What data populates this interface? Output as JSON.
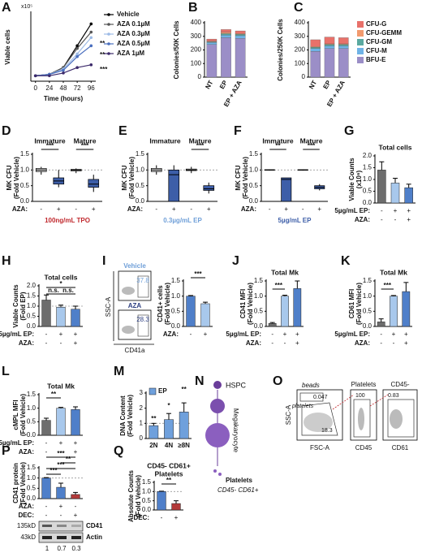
{
  "chart_data": [
    {
      "type": "line",
      "panel": "A",
      "y_unit": "x10⁵",
      "ylabel": [
        "Viable cells"
      ],
      "xlabel": "Time (hours)",
      "x": [
        0,
        24,
        48,
        72,
        96
      ],
      "xlim": [
        -8,
        104
      ],
      "xticks": [
        0,
        24,
        48,
        72,
        96
      ],
      "ylim": [
        0,
        2.5
      ],
      "series": [
        {
          "name": "Vehicle",
          "color": "#000000",
          "values": [
            0.2,
            0.25,
            0.5,
            1.3,
            2.1
          ]
        },
        {
          "name": "AZA 0.1µM",
          "color": "#555555",
          "values": [
            0.2,
            0.25,
            0.5,
            1.2,
            1.8
          ]
        },
        {
          "name": "AZA 0.3µM",
          "color": "#9dbbe6",
          "values": [
            0.2,
            0.25,
            0.45,
            1.0,
            1.6
          ]
        },
        {
          "name": "AZA 0.5µM",
          "color": "#4a6fbf",
          "values": [
            0.2,
            0.25,
            0.4,
            0.9,
            1.3
          ]
        },
        {
          "name": "AZA 1µM",
          "color": "#3c2a6b",
          "values": [
            0.2,
            0.2,
            0.3,
            0.5,
            0.6
          ]
        }
      ],
      "annotations": [
        "**",
        "**",
        "***"
      ]
    },
    {
      "type": "stacked_bar",
      "panel": "B",
      "ylabel": [
        "Colonies/50K Cells"
      ],
      "categories": [
        "NT",
        "EP",
        "EP + AZA"
      ],
      "ylim": [
        0,
        400
      ],
      "yticks": [
        0,
        100,
        200,
        300,
        400
      ],
      "series": [
        {
          "color": "#9b8ec7",
          "values": [
            240,
            290,
            285
          ]
        },
        {
          "color": "#6fb3e6",
          "values": [
            15,
            20,
            20
          ]
        },
        {
          "color": "#5aa9a0",
          "values": [
            5,
            10,
            10
          ]
        },
        {
          "color": "#f29a6e",
          "values": [
            5,
            10,
            5
          ]
        },
        {
          "color": "#e8716a",
          "values": [
            15,
            20,
            20
          ]
        }
      ]
    },
    {
      "type": "stacked_bar",
      "panel": "C",
      "ylabel": [
        "Colonies/250K Cells"
      ],
      "categories": [
        "NT",
        "EP",
        "EP + AZA"
      ],
      "ylim": [
        0,
        400
      ],
      "yticks": [
        0,
        100,
        200,
        300,
        400
      ],
      "series": [
        {
          "name": "BFU-E",
          "color": "#9b8ec7",
          "values": [
            190,
            210,
            210
          ]
        },
        {
          "name": "CFU-M",
          "color": "#6fb3e6",
          "values": [
            20,
            20,
            20
          ]
        },
        {
          "name": "CFU-GM",
          "color": "#5aa9a0",
          "values": [
            10,
            10,
            10
          ]
        },
        {
          "name": "CFU-GEMM",
          "color": "#f29a6e",
          "values": [
            5,
            5,
            5
          ]
        },
        {
          "name": "CFU-G",
          "color": "#e8716a",
          "values": [
            50,
            50,
            45
          ]
        }
      ]
    },
    {
      "type": "box",
      "panel": "D",
      "groups": [
        "Immature",
        "Mature"
      ],
      "ylabel": [
        "MK CFU",
        "(Fold Vehicle)"
      ],
      "ylim": [
        0,
        1.5
      ],
      "yticks": [
        {
          "value": 0,
          "label": "0.0"
        },
        {
          "value": 0.5,
          "label": "0.5"
        },
        {
          "value": 1,
          "label": "1.0"
        },
        {
          "value": 1.5,
          "label": "1.5"
        }
      ],
      "refline": 1,
      "series": [
        {
          "color": "#dddddd",
          "values": [
            [
              0.85,
              0.95,
              1.0,
              1.05,
              1.1
            ],
            [
              0.9,
              0.97,
              1.0,
              1.02,
              1.05
            ]
          ]
        },
        {
          "color": "#3d5ea8",
          "values": [
            [
              0.45,
              0.55,
              0.65,
              0.75,
              1.0
            ],
            [
              0.3,
              0.45,
              0.55,
              0.7,
              0.85
            ]
          ]
        }
      ],
      "rows": [
        {
          "label": "AZA:",
          "signs": [
            "-",
            "+",
            "-",
            "+"
          ]
        }
      ],
      "condition": "100ng/mL TPO",
      "condition_color": "#c0282d",
      "annotations": [
        "***",
        "***"
      ]
    },
    {
      "type": "box",
      "panel": "E",
      "groups": [
        "Immature",
        "Mature"
      ],
      "ylabel": [
        "MK CFU",
        "(Fold Vehicle)"
      ],
      "ylim": [
        0,
        1.5
      ],
      "yticks": [
        {
          "value": 0,
          "label": "0.0"
        },
        {
          "value": 0.5,
          "label": "0.5"
        },
        {
          "value": 1,
          "label": "1.0"
        },
        {
          "value": 1.5,
          "label": "1.5"
        }
      ],
      "refline": 1,
      "series": [
        {
          "color": "#dddddd",
          "values": [
            [
              0.85,
              0.95,
              1.0,
              1.05,
              1.15
            ],
            [
              0.9,
              0.98,
              1.0,
              1.03,
              1.1
            ]
          ]
        },
        {
          "color": "#3d5ea8",
          "values": [
            [
              0.0,
              0.0,
              0.85,
              1.0,
              1.15
            ],
            [
              0.25,
              0.35,
              0.4,
              0.5,
              0.6
            ]
          ]
        }
      ],
      "rows": [
        {
          "label": "AZA:",
          "signs": [
            "-",
            "+",
            "-",
            "+"
          ]
        }
      ],
      "condition": "0.3µg/mL EP",
      "condition_color": "#6f9fd8",
      "annotations": [
        "***"
      ]
    },
    {
      "type": "box",
      "panel": "F",
      "groups": [
        "Immature",
        "Mature"
      ],
      "ylabel": [
        "MK CFU",
        "(Fold Vehicle)"
      ],
      "ylim": [
        0,
        1.5
      ],
      "yticks": [
        {
          "value": 0,
          "label": "0.0"
        },
        {
          "value": 0.5,
          "label": "0.5"
        },
        {
          "value": 1,
          "label": "1.0"
        },
        {
          "value": 1.5,
          "label": "1.5"
        }
      ],
      "refline": 1,
      "series": [
        {
          "color": "#dddddd",
          "values": [
            [
              0.98,
              0.99,
              1.0,
              1.01,
              1.02
            ],
            [
              0.98,
              0.99,
              1.0,
              1.01,
              1.02
            ]
          ]
        },
        {
          "color": "#3d5ea8",
          "values": [
            [
              0.0,
              0.0,
              0.7,
              0.75,
              0.75
            ],
            [
              0.35,
              0.4,
              0.45,
              0.5,
              0.55
            ]
          ]
        }
      ],
      "rows": [
        {
          "label": "AZA:",
          "signs": [
            "-",
            "+",
            "-",
            "+"
          ]
        }
      ],
      "condition": "5µg/mL EP",
      "condition_color": "#3d5ea8",
      "annotations": [
        "**",
        "***"
      ]
    },
    {
      "type": "bar",
      "panel": "G",
      "title": [
        "Total cells"
      ],
      "ylabel": [
        "Viable Counts",
        "(x10⁶)"
      ],
      "ylim": [
        0,
        2
      ],
      "yticks": [
        {
          "value": 0,
          "label": "0.0"
        },
        {
          "value": 0.5,
          "label": "0.5"
        },
        {
          "value": 1,
          "label": "1.0"
        },
        {
          "value": 1.5,
          "label": "1.5"
        },
        {
          "value": 2,
          "label": "2.0"
        }
      ],
      "values": [
        1.4,
        0.85,
        0.65
      ],
      "errors": [
        0.35,
        0.2,
        0.15
      ],
      "colors": [
        "#6d6d6d",
        "#a8c8ec",
        "#4f7fc9"
      ],
      "rows": [
        {
          "label": "5µg/mL EP:",
          "signs": [
            "-",
            "+",
            "+"
          ]
        },
        {
          "label": "AZA:",
          "signs": [
            "-",
            "-",
            "+"
          ]
        }
      ]
    },
    {
      "type": "bar",
      "panel": "H",
      "title": [
        "Total cells"
      ],
      "ylabel": [
        "Viable Counts",
        "(Fold EP)"
      ],
      "ylim": [
        0,
        2
      ],
      "yticks": [
        {
          "value": 0,
          "label": "0.0"
        },
        {
          "value": 0.5,
          "label": "0.5"
        },
        {
          "value": 1,
          "label": "1.0"
        },
        {
          "value": 1.5,
          "label": "1.5"
        },
        {
          "value": 2,
          "label": "2.0"
        }
      ],
      "refline": 1,
      "values": [
        1.3,
        0.95,
        0.85
      ],
      "errors": [
        0.25,
        0.1,
        0.15
      ],
      "colors": [
        "#6d6d6d",
        "#a8c8ec",
        "#4f7fc9"
      ],
      "rows": [
        {
          "label": "5µg/mL EP:",
          "signs": [
            "-",
            "+",
            "+"
          ]
        },
        {
          "label": "AZA:",
          "signs": [
            "-",
            "-",
            "+"
          ]
        }
      ],
      "annotations": [
        "n.s.",
        "n.s.",
        "*"
      ]
    },
    {
      "type": "bar",
      "panel": "I",
      "ylabel": [
        "CD41+ cells",
        "(Fold Vehicle)"
      ],
      "ylim": [
        0,
        1.5
      ],
      "yticks": [
        {
          "value": 0,
          "label": "0.0"
        },
        {
          "value": 0.5,
          "label": "0.5"
        },
        {
          "value": 1,
          "label": "1.0"
        },
        {
          "value": 1.5,
          "label": "1.5"
        }
      ],
      "values": [
        1.0,
        0.75
      ],
      "errors": [
        0.02,
        0.05
      ],
      "colors": [
        "#4f7fc9",
        "#a8c8ec"
      ],
      "rows": [
        {
          "label": "AZA:",
          "signs": [
            "-",
            "+"
          ]
        }
      ],
      "annotations": [
        "***"
      ]
    },
    {
      "type": "bar",
      "panel": "J",
      "title": [
        "Total Mk"
      ],
      "ylabel": [
        "CD41 MFI",
        "(Fold Vehicle)"
      ],
      "ylim": [
        0,
        1.5
      ],
      "yticks": [
        {
          "value": 0,
          "label": "0.0"
        },
        {
          "value": 0.5,
          "label": "0.5"
        },
        {
          "value": 1,
          "label": "1.0"
        },
        {
          "value": 1.5,
          "label": "1.5"
        }
      ],
      "values": [
        0.1,
        1.0,
        1.25
      ],
      "errors": [
        0.03,
        0.03,
        0.25
      ],
      "colors": [
        "#6d6d6d",
        "#a8c8ec",
        "#4f7fc9"
      ],
      "rows": [
        {
          "label": "5µg/mL EP:",
          "signs": [
            "-",
            "+",
            "+"
          ]
        },
        {
          "label": "AZA:",
          "signs": [
            "-",
            "-",
            "+"
          ]
        }
      ],
      "annotations": [
        "***"
      ]
    },
    {
      "type": "bar",
      "panel": "K",
      "title": [
        "Total Mk"
      ],
      "ylabel": [
        "CD61 MFI",
        "(Fold Vehicle)"
      ],
      "ylim": [
        0,
        1.5
      ],
      "yticks": [
        {
          "value": 0,
          "label": "0.0"
        },
        {
          "value": 0.5,
          "label": "0.5"
        },
        {
          "value": 1,
          "label": "1.0"
        },
        {
          "value": 1.5,
          "label": "1.5"
        }
      ],
      "values": [
        0.15,
        1.0,
        1.15
      ],
      "errors": [
        0.1,
        0.02,
        0.3
      ],
      "colors": [
        "#6d6d6d",
        "#a8c8ec",
        "#4f7fc9"
      ],
      "rows": [
        {
          "label": "5µg/mL EP:",
          "signs": [
            "-",
            "+",
            "+"
          ]
        },
        {
          "label": "AZA:",
          "signs": [
            "-",
            "-",
            "+"
          ]
        }
      ],
      "annotations": [
        "***"
      ]
    },
    {
      "type": "bar",
      "panel": "L",
      "title": [
        "Total Mk"
      ],
      "ylabel": [
        "cMPL MFI",
        "(Fold Vehicle)"
      ],
      "ylim": [
        0,
        1.5
      ],
      "yticks": [
        {
          "value": 0,
          "label": "0.0"
        },
        {
          "value": 0.5,
          "label": "0.5"
        },
        {
          "value": 1,
          "label": "1.0"
        },
        {
          "value": 1.5,
          "label": "1.5"
        }
      ],
      "values": [
        0.55,
        1.0,
        0.95
      ],
      "errors": [
        0.08,
        0.03,
        0.1
      ],
      "colors": [
        "#6d6d6d",
        "#a8c8ec",
        "#4f7fc9"
      ],
      "rows": [
        {
          "label": "5µg/mL EP:",
          "signs": [
            "-",
            "+",
            "+"
          ]
        },
        {
          "label": "AZA:",
          "signs": [
            "-",
            "-",
            "+"
          ]
        }
      ],
      "annotations": [
        "**"
      ]
    },
    {
      "type": "bar",
      "panel": "M",
      "ylabel": [
        "DNA Content",
        "(Fold Vehicle)"
      ],
      "categories": [
        "2N",
        "4N",
        "≥8N"
      ],
      "ylim": [
        0,
        3
      ],
      "yticks": [
        0,
        1,
        2,
        3
      ],
      "refline": 1,
      "series": [
        {
          "name": "EP",
          "color": "#6fa0dc",
          "values": [
            0.85,
            1.25,
            1.75
          ],
          "errors": [
            0.15,
            0.4,
            0.6
          ]
        }
      ],
      "annotations": [
        "**",
        "*",
        "**"
      ]
    },
    {
      "type": "bar",
      "panel": "P",
      "ylabel": [
        "CD41 protein",
        "(Fold Vehicle)"
      ],
      "ylim": [
        0,
        1.5
      ],
      "yticks": [
        {
          "value": 0,
          "label": "0.0"
        },
        {
          "value": 0.5,
          "label": "0.5"
        },
        {
          "value": 1,
          "label": "1.0"
        },
        {
          "value": 1.5,
          "label": "1.5"
        }
      ],
      "refline": 1,
      "values": [
        1.0,
        0.55,
        0.2
      ],
      "errors": [
        0.02,
        0.2,
        0.1
      ],
      "colors": [
        "#4f7fc9",
        "#4f7fc9",
        "#b33a3a"
      ],
      "rows": [
        {
          "label": "AZA:",
          "signs": [
            "-",
            "+",
            "-"
          ]
        },
        {
          "label": "DEC:",
          "signs": [
            "-",
            "-",
            "+"
          ]
        }
      ],
      "annotations": [
        "***",
        "***",
        "**",
        "***"
      ]
    },
    {
      "type": "bar",
      "panel": "Q",
      "title": [
        "CD45- CD61+",
        "Platelets"
      ],
      "ylabel": [
        "Absolute Counts",
        "(Fold Vehicle)"
      ],
      "ylim": [
        0,
        1.5
      ],
      "yticks": [
        {
          "value": 0,
          "label": "0.0"
        },
        {
          "value": 0.5,
          "label": "0.5"
        },
        {
          "value": 1,
          "label": "1.0"
        },
        {
          "value": 1.5,
          "label": "1.5"
        }
      ],
      "refline": 1,
      "values": [
        1.0,
        0.35
      ],
      "errors": [
        0.02,
        0.15
      ],
      "colors": [
        "#4f7fc9",
        "#b33a3a"
      ],
      "rows": [
        {
          "label": "DEC:",
          "signs": [
            "-",
            "+"
          ]
        }
      ],
      "annotations": [
        "**"
      ]
    }
  ],
  "flow_I": {
    "vehicle": "Vehicle",
    "vehicle_pct": "37.8",
    "aza": "AZA",
    "aza_pct": "28.3",
    "y_axis": "SSC-A",
    "x_axis": "CD41a"
  },
  "diagram_N": {
    "panel": "N",
    "hspc": "HSPC",
    "megakaryocyte": "Megakaryocyte",
    "platelets": "Platelets",
    "markers": "CD45- CD61+"
  },
  "flow_O": {
    "panel": "O",
    "y_axis": "SSC-A",
    "x1": "FSC-A",
    "beads": "beads",
    "beads_pct": "0.047",
    "platelets": "platelets",
    "platelets_pct": "18.3",
    "gate2": "Platelets",
    "gate2_pct": "100",
    "x2": "CD45",
    "gate3": "CD45-",
    "gate3_pct": "0.83",
    "x3": "CD61"
  },
  "blot_P": {
    "mw": [
      "135kD",
      "43kD"
    ],
    "bands": [
      "CD41",
      "Actin"
    ],
    "quant": [
      "1",
      "0.7",
      "0.3"
    ]
  }
}
